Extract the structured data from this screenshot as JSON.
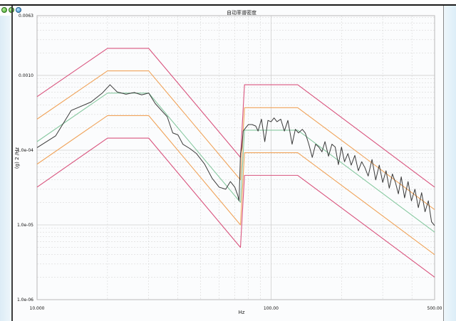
{
  "window": {
    "title": "自动率谱密度"
  },
  "colors": {
    "abort_limit": "#d9547e",
    "alarm_limit": "#f0a35a",
    "reference": "#88c9a1",
    "control": "#3a3a3a",
    "grid": "#d0d0d0"
  },
  "chart_data": {
    "type": "line",
    "title": "自动率谱密度",
    "xlabel": "Hz",
    "ylabel": "(g) 2 /Hz",
    "x_scale": "log",
    "y_scale": "log",
    "xlim": [
      10,
      500
    ],
    "ylim": [
      1e-06,
      0.0063
    ],
    "x_ticks": [
      {
        "value": 10,
        "label": "10.000"
      },
      {
        "value": 100,
        "label": "100.00"
      },
      {
        "value": 500,
        "label": "500.00"
      }
    ],
    "y_ticks": [
      {
        "value": 0.0063,
        "label": "0.0063"
      },
      {
        "value": 0.001,
        "label": "0.0010"
      },
      {
        "value": 0.0001,
        "label": "1.0e-04"
      },
      {
        "value": 1e-05,
        "label": "1.0e-05"
      },
      {
        "value": 1e-06,
        "label": "1.0e-06"
      }
    ],
    "grid": true,
    "legend": "none",
    "series": [
      {
        "role": "abort_upper",
        "color": "#d9547e",
        "points": [
          [
            10,
            0.00052
          ],
          [
            20,
            0.0023
          ],
          [
            30,
            0.0023
          ],
          [
            74,
            8e-05
          ],
          [
            77,
            0.00075
          ],
          [
            130,
            0.00075
          ],
          [
            500,
            3.2e-05
          ]
        ]
      },
      {
        "role": "alarm_upper",
        "color": "#f0a35a",
        "points": [
          [
            10,
            0.00026
          ],
          [
            20,
            0.00115
          ],
          [
            30,
            0.00115
          ],
          [
            74,
            4e-05
          ],
          [
            77,
            0.00037
          ],
          [
            130,
            0.00037
          ],
          [
            500,
            1.6e-05
          ]
        ]
      },
      {
        "role": "reference",
        "color": "#88c9a1",
        "points": [
          [
            10,
            0.00013
          ],
          [
            20,
            0.00058
          ],
          [
            30,
            0.00058
          ],
          [
            74,
            2e-05
          ],
          [
            77,
            0.000185
          ],
          [
            130,
            0.000185
          ],
          [
            500,
            8e-06
          ]
        ]
      },
      {
        "role": "alarm_lower",
        "color": "#f0a35a",
        "points": [
          [
            10,
            6.5e-05
          ],
          [
            20,
            0.00029
          ],
          [
            30,
            0.00029
          ],
          [
            74,
            1e-05
          ],
          [
            77,
            9.25e-05
          ],
          [
            130,
            9.25e-05
          ],
          [
            500,
            4e-06
          ]
        ]
      },
      {
        "role": "abort_lower",
        "color": "#d9547e",
        "points": [
          [
            10,
            3.2e-05
          ],
          [
            20,
            0.000145
          ],
          [
            30,
            0.000145
          ],
          [
            74,
            5e-06
          ],
          [
            77,
            4.6e-05
          ],
          [
            130,
            4.6e-05
          ],
          [
            500,
            2e-06
          ]
        ]
      },
      {
        "role": "control",
        "color": "#3a3a3a",
        "points": [
          [
            10,
            0.000108
          ],
          [
            12,
            0.000155
          ],
          [
            14,
            0.00034
          ],
          [
            17,
            0.00044
          ],
          [
            19,
            0.00058
          ],
          [
            20.5,
            0.00075
          ],
          [
            22,
            0.0006
          ],
          [
            24,
            0.00056
          ],
          [
            26,
            0.00059
          ],
          [
            28,
            0.00055
          ],
          [
            30,
            0.00058
          ],
          [
            32,
            0.00042
          ],
          [
            34,
            0.00034
          ],
          [
            36,
            0.00028
          ],
          [
            38,
            0.00017
          ],
          [
            40,
            0.00016
          ],
          [
            42,
            0.00012
          ],
          [
            45,
            0.000105
          ],
          [
            48,
            9e-05
          ],
          [
            52,
            6.5e-05
          ],
          [
            56,
            4.2e-05
          ],
          [
            60,
            3.2e-05
          ],
          [
            64,
            3e-05
          ],
          [
            67,
            3.8e-05
          ],
          [
            70,
            3.2e-05
          ],
          [
            72,
            2.5e-05
          ],
          [
            73,
            2.1e-05
          ],
          [
            74,
            9e-05
          ],
          [
            75,
            0.00011
          ],
          [
            76,
            0.00018
          ],
          [
            78,
            0.0002
          ],
          [
            80,
            0.00022
          ],
          [
            83,
            0.00022
          ],
          [
            86,
            0.00021
          ],
          [
            88,
            0.00018
          ],
          [
            91,
            0.00026
          ],
          [
            94,
            0.00013
          ],
          [
            97,
            0.00025
          ],
          [
            100,
            0.00024
          ],
          [
            103,
            0.00027
          ],
          [
            106,
            0.00024
          ],
          [
            110,
            0.00026
          ],
          [
            114,
            0.00018
          ],
          [
            118,
            0.00025
          ],
          [
            123,
            0.00012
          ],
          [
            127,
            0.00019
          ],
          [
            131,
            0.00017
          ],
          [
            136,
            0.00019
          ],
          [
            140,
            0.00017
          ],
          [
            145,
            0.00012
          ],
          [
            150,
            8e-05
          ],
          [
            155,
            0.00012
          ],
          [
            160,
            0.00011
          ],
          [
            165,
            9.5e-05
          ],
          [
            170,
            0.00013
          ],
          [
            176,
            8.3e-05
          ],
          [
            182,
            0.00012
          ],
          [
            188,
            0.00011
          ],
          [
            194,
            6.4e-05
          ],
          [
            200,
            0.00011
          ],
          [
            206,
            7e-05
          ],
          [
            213,
            9e-05
          ],
          [
            220,
            6.3e-05
          ],
          [
            228,
            8.5e-05
          ],
          [
            236,
            5.3e-05
          ],
          [
            244,
            7e-05
          ],
          [
            252,
            5.8e-05
          ],
          [
            260,
            4.5e-05
          ],
          [
            270,
            7.5e-05
          ],
          [
            280,
            4e-05
          ],
          [
            290,
            6.3e-05
          ],
          [
            300,
            3.7e-05
          ],
          [
            310,
            5.3e-05
          ],
          [
            320,
            3.1e-05
          ],
          [
            330,
            4.8e-05
          ],
          [
            340,
            3.7e-05
          ],
          [
            350,
            2.6e-05
          ],
          [
            360,
            4.4e-05
          ],
          [
            372,
            2.3e-05
          ],
          [
            385,
            3.8e-05
          ],
          [
            398,
            2.1e-05
          ],
          [
            412,
            3e-05
          ],
          [
            426,
            1.7e-05
          ],
          [
            440,
            2.7e-05
          ],
          [
            455,
            1.5e-05
          ],
          [
            470,
            2.1e-05
          ],
          [
            485,
            1.1e-05
          ],
          [
            500,
            9.8e-06
          ]
        ]
      }
    ]
  }
}
